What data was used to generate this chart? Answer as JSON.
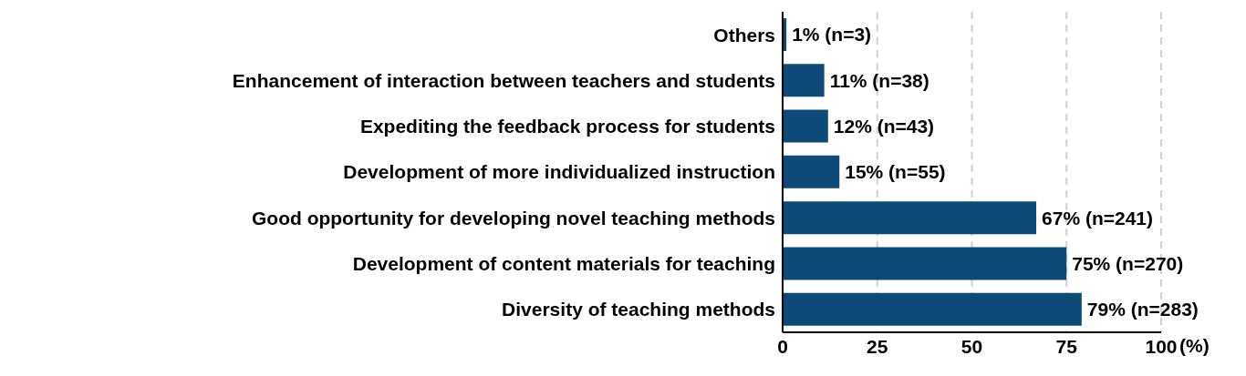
{
  "chart_data": {
    "type": "bar",
    "orientation": "horizontal",
    "categories": [
      "Others",
      "Enhancement of interaction between teachers and students",
      "Expediting the feedback process for students",
      "Development of more individualized instruction",
      "Good opportunity for developing novel teaching methods",
      "Development of content materials for teaching",
      "Diversity of teaching methods"
    ],
    "values": [
      1,
      11,
      12,
      15,
      67,
      75,
      79
    ],
    "value_labels": [
      "1% (n=3)",
      "11% (n=38)",
      "12% (n=43)",
      "15% (n=55)",
      "67% (n=241)",
      "75% (n=270)",
      "79% (n=283)"
    ],
    "color": "#0d4a78",
    "xlim": [
      0,
      100
    ],
    "xticks": [
      0,
      25,
      50,
      75,
      100
    ],
    "xlabel": "(%)",
    "grid": "x"
  }
}
